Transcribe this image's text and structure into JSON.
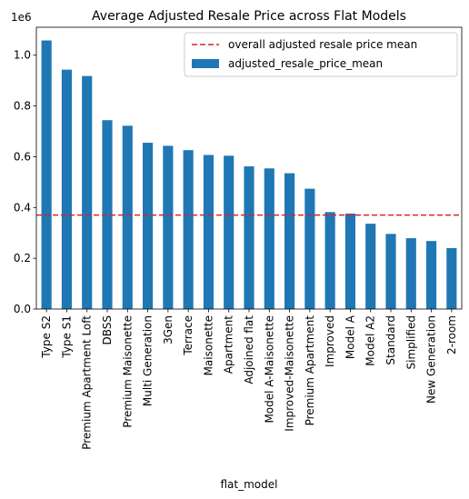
{
  "chart_data": {
    "type": "bar",
    "title": "Average Adjusted Resale Price across Flat Models",
    "xlabel": "flat_model",
    "ylabel": "",
    "y_offset_label": "1e6",
    "ylim": [
      0,
      1.11
    ],
    "yticks": [
      0.0,
      0.2,
      0.4,
      0.6,
      0.8,
      1.0
    ],
    "categories": [
      "Type S2",
      "Type S1",
      "Premium Apartment Loft",
      "DBSS",
      "Premium Maisonette",
      "Multi Generation",
      "3Gen",
      "Terrace",
      "Maisonette",
      "Apartment",
      "Adjoined flat",
      "Model A-Maisonette",
      "Improved-Maisonette",
      "Premium Apartment",
      "Improved",
      "Model A",
      "Model A2",
      "Standard",
      "Simplified",
      "New Generation",
      "2-room"
    ],
    "series": [
      {
        "name": "adjusted_resale_price_mean",
        "values": [
          1.058,
          0.943,
          0.918,
          0.744,
          0.722,
          0.655,
          0.643,
          0.626,
          0.607,
          0.604,
          0.562,
          0.554,
          0.535,
          0.474,
          0.382,
          0.376,
          0.336,
          0.296,
          0.279,
          0.268,
          0.24
        ],
        "color": "#1f77b4"
      }
    ],
    "reference_line": {
      "name": "overall adjusted resale price mean",
      "value": 0.37,
      "color": "#d62728",
      "style": "dashed"
    },
    "legend_position": "top-right",
    "grid": false
  }
}
